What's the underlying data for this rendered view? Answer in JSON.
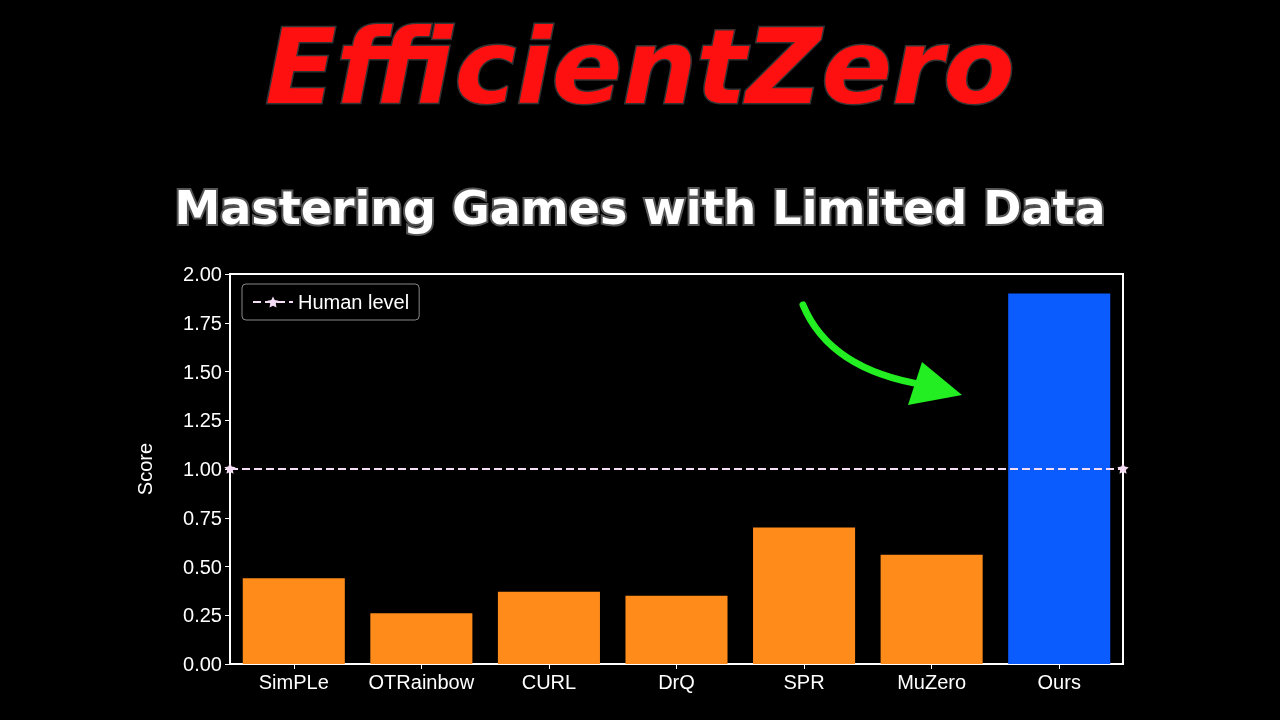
{
  "chart_data": {
    "type": "bar",
    "title": "EfficientZero",
    "subtitle": "Mastering Games with Limited Data",
    "ylabel": "Score",
    "categories": [
      "SimPLe",
      "OTRainbow",
      "CURL",
      "DrQ",
      "SPR",
      "MuZero",
      "Ours"
    ],
    "values": [
      0.44,
      0.26,
      0.37,
      0.35,
      0.7,
      0.56,
      1.9
    ],
    "colors": [
      "#ff8c1a",
      "#ff8c1a",
      "#ff8c1a",
      "#ff8c1a",
      "#ff8c1a",
      "#ff8c1a",
      "#0a5cff"
    ],
    "ylim": [
      0,
      2
    ],
    "yticks": [
      {
        "value": 0,
        "label": "0.00"
      },
      {
        "value": 0.25,
        "label": "0.25"
      },
      {
        "value": 0.5,
        "label": "0.50"
      },
      {
        "value": 0.75,
        "label": "0.75"
      },
      {
        "value": 1,
        "label": "1.00"
      },
      {
        "value": 1.25,
        "label": "1.25"
      },
      {
        "value": 1.5,
        "label": "1.50"
      },
      {
        "value": 1.75,
        "label": "1.75"
      },
      {
        "value": 2,
        "label": "2.00"
      }
    ],
    "ref_lines": [
      {
        "axis": "y",
        "value": 1,
        "label": "Human level",
        "color": "#f4dcf4",
        "line_style": "dashed"
      }
    ],
    "marker": "star",
    "legend": "top left",
    "grid": false
  }
}
